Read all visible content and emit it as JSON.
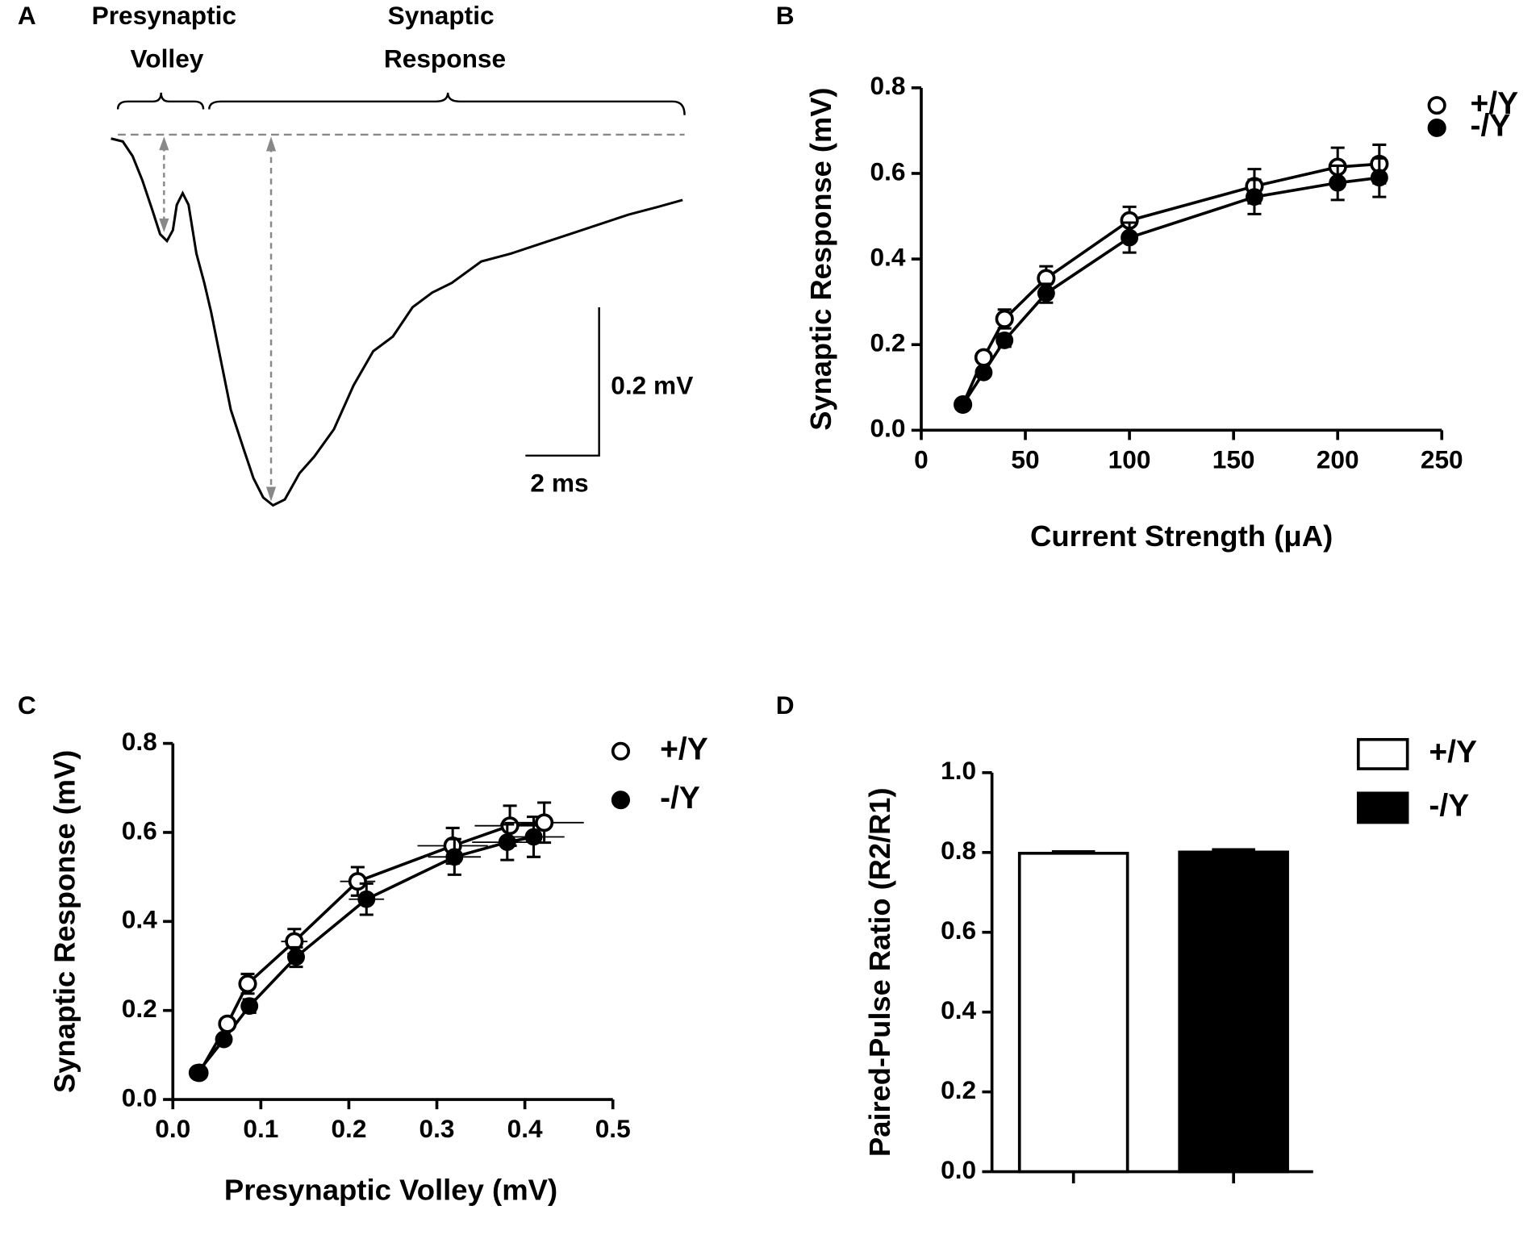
{
  "panel_a": {
    "label": "A",
    "volley_label": [
      "Presynaptic",
      "Volley"
    ],
    "response_label": [
      "Synaptic",
      "Response"
    ],
    "scale_y": "0.2 mV",
    "scale_x": "2 ms"
  },
  "chart_data": [
    {
      "type": "scatter",
      "label": "B",
      "xlabel": "Current Strength (μA)",
      "ylabel": "Synaptic Response (mV)",
      "x": [
        20,
        30,
        40,
        60,
        100,
        160,
        200,
        220
      ],
      "xlim": [
        0,
        250
      ],
      "xticks": [
        0,
        50,
        100,
        150,
        200,
        250
      ],
      "ylim": [
        0,
        0.8
      ],
      "yticks": [
        {
          "value": 0,
          "label": "0.0"
        },
        0.2,
        0.4,
        0.6,
        0.8
      ],
      "series": [
        {
          "name": "+/Y",
          "color": "#000000",
          "marker": "open",
          "values": [
            0.06,
            0.17,
            0.26,
            0.355,
            0.49,
            0.57,
            0.615,
            0.622
          ],
          "errors": [
            0.005,
            0.012,
            0.022,
            0.028,
            0.032,
            0.04,
            0.045,
            0.045
          ]
        },
        {
          "name": "-/Y",
          "color": "#000000",
          "marker": "filled",
          "values": [
            0.06,
            0.135,
            0.21,
            0.32,
            0.45,
            0.545,
            0.578,
            0.59
          ],
          "errors": [
            0.005,
            0.01,
            0.015,
            0.022,
            0.035,
            0.04,
            0.04,
            0.045
          ]
        }
      ]
    },
    {
      "type": "scatter",
      "label": "C",
      "xlabel": "Presynaptic Volley (mV)",
      "ylabel": "Synaptic Response (mV)",
      "xlim": [
        0,
        0.5
      ],
      "xticks": [
        {
          "value": 0,
          "label": "0.0"
        },
        0.1,
        0.2,
        0.3,
        0.4,
        0.5
      ],
      "ylim": [
        0,
        0.8
      ],
      "yticks": [
        {
          "value": 0,
          "label": "0.0"
        },
        0.2,
        0.4,
        0.6,
        0.8
      ],
      "series": [
        {
          "name": "+/Y",
          "color": "#000000",
          "marker": "open",
          "x": [
            0.03,
            0.062,
            0.085,
            0.138,
            0.21,
            0.318,
            0.383,
            0.422
          ],
          "xerrors": [
            0.005,
            0.01,
            0.01,
            0.015,
            0.02,
            0.04,
            0.04,
            0.045
          ],
          "values": [
            0.06,
            0.17,
            0.26,
            0.355,
            0.49,
            0.57,
            0.615,
            0.622
          ],
          "errors": [
            0.005,
            0.012,
            0.022,
            0.028,
            0.032,
            0.04,
            0.045,
            0.045
          ]
        },
        {
          "name": "-/Y",
          "color": "#000000",
          "marker": "filled",
          "x": [
            0.028,
            0.058,
            0.087,
            0.14,
            0.22,
            0.32,
            0.38,
            0.41
          ],
          "xerrors": [
            0.005,
            0.005,
            0.005,
            0.01,
            0.02,
            0.03,
            0.04,
            0.035
          ],
          "values": [
            0.06,
            0.135,
            0.21,
            0.32,
            0.45,
            0.545,
            0.578,
            0.59
          ],
          "errors": [
            0.005,
            0.01,
            0.015,
            0.022,
            0.035,
            0.04,
            0.04,
            0.045
          ]
        }
      ]
    },
    {
      "type": "bar",
      "label": "D",
      "ylabel": "Paired-Pulse Ratio (R2/R1)",
      "categories": [
        null,
        null
      ],
      "values": [
        0.798,
        0.801
      ],
      "errors": [
        0.004,
        0.006
      ],
      "legend": [
        "+/Y",
        "-/Y"
      ],
      "colors": [
        "#ffffff",
        "#000000"
      ],
      "ylim": [
        0,
        1
      ],
      "yticks": [
        {
          "value": 0,
          "label": "0.0"
        },
        0.2,
        0.4,
        0.6,
        0.8,
        {
          "value": 1,
          "label": "1.0"
        }
      ]
    }
  ]
}
